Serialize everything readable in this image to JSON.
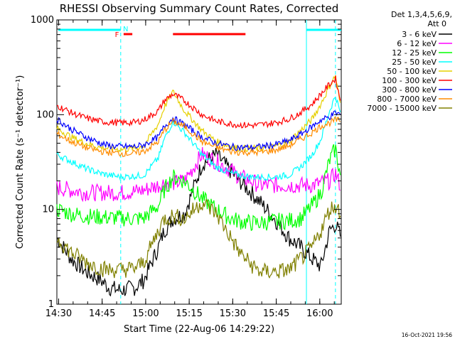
{
  "chart_data": {
    "type": "line",
    "title": "RHESSI Observing Summary Count Rates, Corrected",
    "xlabel": "Start Time (22-Aug-06 14:29:22)",
    "ylabel": "Corrected Count Rate (s⁻¹ detector⁻¹)",
    "ylog": true,
    "ylim": [
      1,
      1000
    ],
    "xlim_minutes": [
      0,
      98
    ],
    "x_ticks": [
      "14:30",
      "14:45",
      "15:00",
      "15:15",
      "15:30",
      "15:45",
      "16:00"
    ],
    "y_ticks": [
      "1",
      "10",
      "100",
      "1000"
    ],
    "legend_header": [
      "Det 1,3,4,5,6,9,",
      "Att 0"
    ],
    "legend_position": "right",
    "footer_date": "16-Oct-2021 19:56",
    "annotations": [
      {
        "text": "F",
        "color": "#ff0000"
      },
      {
        "text": "N",
        "color": "#00ffff"
      }
    ],
    "x_points_minutes": [
      0,
      5,
      10,
      15,
      18,
      22,
      27,
      30,
      35,
      37,
      40,
      44,
      50,
      55,
      60,
      63,
      67,
      70,
      75,
      80,
      84,
      88,
      91,
      94,
      96,
      98
    ],
    "series": [
      {
        "name": "3 - 6 keV",
        "color": "#000000",
        "values": [
          5,
          3,
          2.2,
          1.8,
          1.5,
          1.4,
          1.5,
          1.8,
          4,
          6,
          8,
          9,
          30,
          38,
          25,
          20,
          15,
          12,
          8,
          5,
          4,
          3,
          2.5,
          6,
          7,
          5
        ]
      },
      {
        "name": "6 - 12 keV",
        "color": "#ff00ff",
        "values": [
          17,
          16,
          15,
          15,
          15,
          15,
          15.5,
          16,
          18,
          19,
          19,
          20,
          38,
          32,
          26,
          22,
          20,
          18,
          18,
          18,
          18,
          18,
          19,
          20,
          24,
          17
        ]
      },
      {
        "name": "12 - 25 keV",
        "color": "#00ff00",
        "values": [
          10,
          9,
          8.5,
          8.3,
          8.2,
          8.1,
          8,
          8.1,
          11,
          16,
          22,
          20,
          13,
          10,
          8,
          7.5,
          7.2,
          7.2,
          7.5,
          7.6,
          8,
          11,
          15,
          33,
          44,
          20
        ]
      },
      {
        "name": "25 - 50 keV",
        "color": "#00ffff",
        "values": [
          38,
          32,
          27,
          24,
          23,
          22,
          22.5,
          23,
          35,
          55,
          85,
          65,
          38,
          28,
          24,
          23,
          22,
          22,
          22,
          23,
          28,
          38,
          55,
          110,
          160,
          95
        ]
      },
      {
        "name": "50 - 100 keV",
        "color": "#e6d000",
        "values": [
          72,
          58,
          50,
          45,
          44,
          43,
          44,
          47,
          80,
          120,
          175,
          110,
          68,
          52,
          46,
          44,
          44,
          44,
          46,
          52,
          68,
          90,
          130,
          200,
          260,
          110
        ]
      },
      {
        "name": "100 - 300 keV",
        "color": "#ff0000",
        "values": [
          125,
          105,
          92,
          85,
          83,
          82,
          83,
          88,
          110,
          140,
          165,
          140,
          100,
          85,
          80,
          78,
          77,
          78,
          82,
          90,
          105,
          130,
          165,
          210,
          240,
          130
        ]
      },
      {
        "name": "300 - 800 keV",
        "color": "#0000ff",
        "values": [
          90,
          70,
          58,
          50,
          47,
          46,
          46,
          48,
          58,
          75,
          92,
          78,
          58,
          50,
          46,
          45,
          45,
          46,
          48,
          53,
          62,
          75,
          88,
          95,
          105,
          100
        ]
      },
      {
        "name": "800 - 7000 keV",
        "color": "#ff8c00",
        "values": [
          63,
          52,
          45,
          41,
          40,
          39,
          39,
          41,
          52,
          68,
          85,
          75,
          52,
          45,
          41,
          40,
          40,
          40,
          42,
          47,
          55,
          65,
          76,
          82,
          88,
          86
        ]
      },
      {
        "name": "7000 - 15000 keV",
        "color": "#808000",
        "values": [
          5,
          3.5,
          2.8,
          2.4,
          2.3,
          2.3,
          2.4,
          2.8,
          6,
          8,
          8.5,
          8,
          12,
          9,
          5,
          3.5,
          2.6,
          2.2,
          2.2,
          2.3,
          3,
          4,
          6,
          10,
          11,
          9
        ]
      }
    ]
  }
}
